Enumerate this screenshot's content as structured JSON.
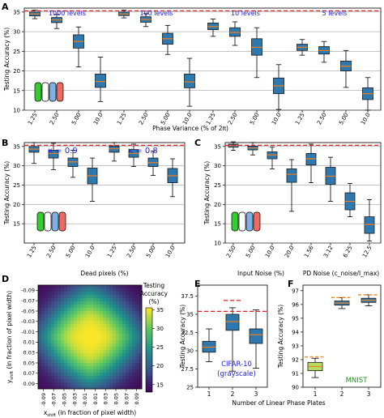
{
  "figure": {
    "panel_letters": [
      "A",
      "B",
      "C",
      "D",
      "E",
      "F"
    ],
    "palette": {
      "box": "#2f78ad",
      "box_edge": "#1a1a1a",
      "median": "#f07d1b",
      "dashed_red": "#d62728",
      "dashed_orange": "#ee8a22",
      "label_blue": "#1f1fd6",
      "label_green": "#1f8f1f",
      "grid": "#8a8a8a",
      "f_box": "#b6dd62"
    },
    "plate_icon_colors": [
      "#33cc33",
      "#ffffff",
      "#7fb0e6",
      "#ef6a61"
    ]
  },
  "chart_data": [
    {
      "id": "A",
      "type": "box",
      "ylabel": "Testing Accuracy (%)",
      "xlabel": "Phase Variance (% of 2π)",
      "ylim": [
        10,
        36
      ],
      "yticks": [
        10,
        15,
        20,
        25,
        30,
        35
      ],
      "reference_line": 35.3,
      "grid": true,
      "group_labels": [
        "1000 levels",
        "100 levels",
        "10 levels",
        "5 levels"
      ],
      "tick_labels": [
        "1.25",
        "2.50",
        "5.00",
        "10.0",
        "1.25",
        "2.50",
        "5.00",
        "10.0",
        "1.25",
        "2.50",
        "5.00",
        "10.0",
        "1.25",
        "2.50",
        "5.00",
        "10.0"
      ],
      "boxes": [
        {
          "group": 0,
          "pos": 0,
          "whislo": 33.3,
          "q1": 34.0,
          "med": 34.5,
          "q3": 35.0,
          "whishi": 35.5
        },
        {
          "group": 0,
          "pos": 1,
          "whislo": 30.8,
          "q1": 32.3,
          "med": 33.0,
          "q3": 33.6,
          "whishi": 34.4
        },
        {
          "group": 0,
          "pos": 2,
          "whislo": 21.0,
          "q1": 25.8,
          "med": 27.5,
          "q3": 29.2,
          "whishi": 31.2
        },
        {
          "group": 0,
          "pos": 3,
          "whislo": 12.2,
          "q1": 15.8,
          "med": 17.3,
          "q3": 19.2,
          "whishi": 23.5
        },
        {
          "group": 1,
          "pos": 0,
          "whislo": 33.5,
          "q1": 34.1,
          "med": 34.5,
          "q3": 35.0,
          "whishi": 35.5
        },
        {
          "group": 1,
          "pos": 1,
          "whislo": 31.3,
          "q1": 32.4,
          "med": 33.1,
          "q3": 33.8,
          "whishi": 34.6
        },
        {
          "group": 1,
          "pos": 2,
          "whislo": 24.2,
          "q1": 26.8,
          "med": 28.2,
          "q3": 29.6,
          "whishi": 31.6
        },
        {
          "group": 1,
          "pos": 3,
          "whislo": 11.0,
          "q1": 15.7,
          "med": 17.2,
          "q3": 19.2,
          "whishi": 23.2
        },
        {
          "group": 2,
          "pos": 0,
          "whislo": 28.8,
          "q1": 30.5,
          "med": 31.3,
          "q3": 32.2,
          "whishi": 33.2
        },
        {
          "group": 2,
          "pos": 1,
          "whislo": 26.5,
          "q1": 28.8,
          "med": 29.8,
          "q3": 31.0,
          "whishi": 32.5
        },
        {
          "group": 2,
          "pos": 2,
          "whislo": 18.3,
          "q1": 24.0,
          "med": 26.0,
          "q3": 28.2,
          "whishi": 31.0
        },
        {
          "group": 2,
          "pos": 3,
          "whislo": 10.2,
          "q1": 14.2,
          "med": 16.2,
          "q3": 18.2,
          "whishi": 21.6
        },
        {
          "group": 3,
          "pos": 0,
          "whislo": 24.0,
          "q1": 25.2,
          "med": 26.0,
          "q3": 26.8,
          "whishi": 28.0
        },
        {
          "group": 3,
          "pos": 1,
          "whislo": 22.2,
          "q1": 24.3,
          "med": 25.2,
          "q3": 26.2,
          "whishi": 27.5
        },
        {
          "group": 3,
          "pos": 2,
          "whislo": 15.8,
          "q1": 20.0,
          "med": 21.2,
          "q3": 22.5,
          "whishi": 25.2
        },
        {
          "group": 3,
          "pos": 3,
          "whislo": 10.0,
          "q1": 12.7,
          "med": 14.2,
          "q3": 15.7,
          "whishi": 18.3
        }
      ]
    },
    {
      "id": "B",
      "type": "box",
      "ylabel": "Testing Accuracy (%)",
      "xlabel": "Dead pixels (%)",
      "ylim": [
        10,
        36
      ],
      "yticks": [
        15,
        20,
        25,
        30,
        35
      ],
      "reference_line": 35.3,
      "grid": true,
      "group_labels": [
        "κ = 0.9",
        "κ = 0.8"
      ],
      "tick_labels": [
        "1.25",
        "2.50",
        "5.00",
        "10.0",
        "1.25",
        "2.50",
        "5.00",
        "10.0"
      ],
      "boxes": [
        {
          "group": 0,
          "pos": 0,
          "whislo": 30.6,
          "q1": 33.5,
          "med": 34.3,
          "q3": 35.0,
          "whishi": 36.0
        },
        {
          "group": 0,
          "pos": 1,
          "whislo": 29.0,
          "q1": 32.0,
          "med": 33.2,
          "q3": 34.0,
          "whishi": 35.8
        },
        {
          "group": 0,
          "pos": 2,
          "whislo": 27.0,
          "q1": 29.8,
          "med": 31.0,
          "q3": 32.0,
          "whishi": 34.0
        },
        {
          "group": 0,
          "pos": 3,
          "whislo": 20.8,
          "q1": 25.3,
          "med": 27.4,
          "q3": 29.4,
          "whishi": 32.0
        },
        {
          "group": 1,
          "pos": 0,
          "whislo": 31.2,
          "q1": 33.5,
          "med": 34.4,
          "q3": 35.1,
          "whishi": 36.0
        },
        {
          "group": 1,
          "pos": 1,
          "whislo": 29.8,
          "q1": 32.2,
          "med": 33.2,
          "q3": 34.2,
          "whishi": 35.6
        },
        {
          "group": 1,
          "pos": 2,
          "whislo": 27.5,
          "q1": 29.8,
          "med": 30.8,
          "q3": 32.0,
          "whishi": 33.8
        },
        {
          "group": 1,
          "pos": 3,
          "whislo": 22.0,
          "q1": 25.6,
          "med": 27.4,
          "q3": 29.3,
          "whishi": 31.8
        }
      ]
    },
    {
      "id": "C",
      "type": "box",
      "ylabel": "",
      "xlabel_groups": [
        "Input Noise (%)",
        "PD Noise (c_noise/I_max)"
      ],
      "ylim": [
        10,
        36
      ],
      "yticks": [
        10,
        15,
        20,
        25,
        30,
        35
      ],
      "reference_line": 35.3,
      "grid": true,
      "tick_labels": [
        "2.50",
        "5.00",
        "10.0",
        "20.0",
        "1.56",
        "3.12",
        "6.25",
        "12.5"
      ],
      "boxes": [
        {
          "group": 0,
          "pos": 0,
          "whislo": 34.0,
          "q1": 34.8,
          "med": 35.2,
          "q3": 35.6,
          "whishi": 36.2
        },
        {
          "group": 0,
          "pos": 1,
          "whislo": 32.8,
          "q1": 34.1,
          "med": 34.6,
          "q3": 35.1,
          "whishi": 36.0
        },
        {
          "group": 0,
          "pos": 2,
          "whislo": 29.2,
          "q1": 31.8,
          "med": 32.8,
          "q3": 33.6,
          "whishi": 34.8
        },
        {
          "group": 0,
          "pos": 3,
          "whislo": 18.2,
          "q1": 25.7,
          "med": 27.8,
          "q3": 29.2,
          "whishi": 31.6
        },
        {
          "group": 1,
          "pos": 0,
          "whislo": 25.6,
          "q1": 30.2,
          "med": 31.8,
          "q3": 33.2,
          "whishi": 35.6
        },
        {
          "group": 1,
          "pos": 1,
          "whislo": 20.8,
          "q1": 25.2,
          "med": 27.3,
          "q3": 29.6,
          "whishi": 32.2
        },
        {
          "group": 1,
          "pos": 2,
          "whislo": 16.8,
          "q1": 18.6,
          "med": 20.8,
          "q3": 23.0,
          "whishi": 25.4
        },
        {
          "group": 1,
          "pos": 3,
          "whislo": 10.5,
          "q1": 12.5,
          "med": 14.8,
          "q3": 16.8,
          "whishi": 21.2
        }
      ]
    },
    {
      "id": "D",
      "type": "heatmap",
      "xlabel_main": "x",
      "xlabel_sub": "shift",
      "xlabel_rest": " (in fraction of pixel width)",
      "ylabel_main": "y",
      "ylabel_sub": "shift",
      "ylabel_rest": " (in fraction of pixel width)",
      "xticks": [
        "-0.09",
        "-0.07",
        "-0.05",
        "-0.03",
        "-0.01",
        "0.01",
        "0.03",
        "0.05",
        "0.07",
        "0.09"
      ],
      "yticks": [
        "-0.09",
        "-0.07",
        "-0.05",
        "-0.03",
        "-0.01",
        "0.01",
        "0.03",
        "0.05",
        "0.07",
        "0.09"
      ],
      "colorbar_title": [
        "Testing",
        "Accuracy",
        "(%)"
      ],
      "colorbar_ticks": [
        "15",
        "20",
        "25",
        "30",
        "35"
      ],
      "colorbar_range": [
        13,
        35.5
      ],
      "model": {
        "peak": 35.4,
        "min": 13.5
      }
    },
    {
      "id": "E",
      "type": "box",
      "ylabel": "Testing Accuracy (%)",
      "xlabel": "Number of Linear Phase Plates",
      "ylim": [
        25,
        39
      ],
      "yticks": [
        25,
        27.5,
        30,
        32.5,
        35,
        37.5
      ],
      "tick_labels": [
        "1",
        "2",
        "3"
      ],
      "dashed_top": [
        {
          "pos": 2,
          "value": 36.9,
          "color": "dashed_red"
        }
      ],
      "reference_line": 35.4,
      "annotation": [
        "CIFAR-10",
        "(grayscale)"
      ],
      "boxes": [
        {
          "pos": 1,
          "whislo": 28.5,
          "q1": 29.8,
          "med": 30.5,
          "q3": 31.3,
          "whishi": 33.0
        },
        {
          "pos": 2,
          "whislo": 27.2,
          "q1": 32.8,
          "med": 34.0,
          "q3": 35.0,
          "whishi": 35.9
        },
        {
          "pos": 3,
          "whislo": 27.6,
          "q1": 31.0,
          "med": 32.2,
          "q3": 33.0,
          "whishi": 35.6
        }
      ]
    },
    {
      "id": "F",
      "type": "box",
      "ylabel": "Testing Accuracy (%)",
      "ylim": [
        90,
        97.4
      ],
      "yticks": [
        90,
        91,
        92,
        93,
        94,
        95,
        96,
        97
      ],
      "tick_labels": [
        "1",
        "2",
        "3"
      ],
      "annotation": [
        "MNIST"
      ],
      "dashed_levels": [
        {
          "pos": 1,
          "value": 92.2
        },
        {
          "pos": 2,
          "value": 96.5
        },
        {
          "pos": 3,
          "value": 96.7
        }
      ],
      "boxes": [
        {
          "pos": 1,
          "whislo": 90.7,
          "q1": 91.2,
          "med": 91.5,
          "q3": 91.8,
          "whishi": 92.1
        },
        {
          "pos": 2,
          "whislo": 95.7,
          "q1": 95.95,
          "med": 96.1,
          "q3": 96.25,
          "whishi": 96.5
        },
        {
          "pos": 3,
          "whislo": 95.9,
          "q1": 96.15,
          "med": 96.3,
          "q3": 96.45,
          "whishi": 96.7
        }
      ]
    }
  ]
}
